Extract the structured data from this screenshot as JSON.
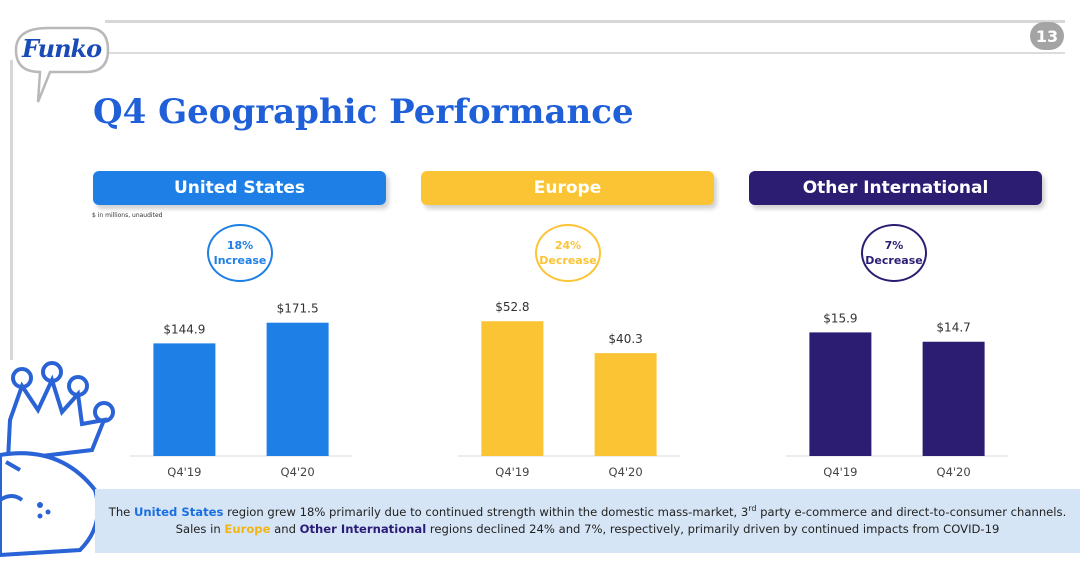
{
  "logo": {
    "text": "Funko"
  },
  "page_number": "13",
  "title": "Q4 Geographic Performance",
  "units_note": "$ in millions, unaudited",
  "colors": {
    "us": "#1e7fe6",
    "europe": "#fbc434",
    "other": "#2c1d72",
    "footer_bg": "#d6e5f5",
    "title": "#1f5fd8"
  },
  "regions": [
    {
      "name": "United States",
      "change_pct": "18%",
      "change_word": "Increase"
    },
    {
      "name": "Europe",
      "change_pct": "24%",
      "change_word": "Decrease"
    },
    {
      "name": "Other International",
      "change_pct": "7%",
      "change_word": "Decrease"
    }
  ],
  "chart_data": [
    {
      "type": "bar",
      "title": "United States",
      "categories": [
        "Q4'19",
        "Q4'20"
      ],
      "values": [
        144.9,
        171.5
      ],
      "value_labels": [
        "$144.9",
        "$171.5"
      ],
      "ylim": [
        0,
        220
      ],
      "color": "#1e7fe6"
    },
    {
      "type": "bar",
      "title": "Europe",
      "categories": [
        "Q4'19",
        "Q4'20"
      ],
      "values": [
        52.8,
        40.3
      ],
      "value_labels": [
        "$52.8",
        "$40.3"
      ],
      "ylim": [
        0,
        67
      ],
      "color": "#fbc434"
    },
    {
      "type": "bar",
      "title": "Other International",
      "categories": [
        "Q4'19",
        "Q4'20"
      ],
      "values": [
        15.9,
        14.7
      ],
      "value_labels": [
        "$15.9",
        "$14.7"
      ],
      "ylim": [
        0,
        22
      ],
      "color": "#2c1d72"
    }
  ],
  "footer": {
    "line1": {
      "pre": "The ",
      "hl1": "United States",
      "mid": " region grew 18% primarily due to continued strength within the domestic mass-market, 3",
      "sup": "rd",
      "post": " party e-commerce and direct-to-consumer channels."
    },
    "line2": {
      "pre": "Sales in ",
      "hl1": "Europe",
      "mid": " and ",
      "hl2": "Other International",
      "post": " regions declined 24% and 7%, respectively, primarily driven by continued impacts from COVID-19"
    }
  }
}
